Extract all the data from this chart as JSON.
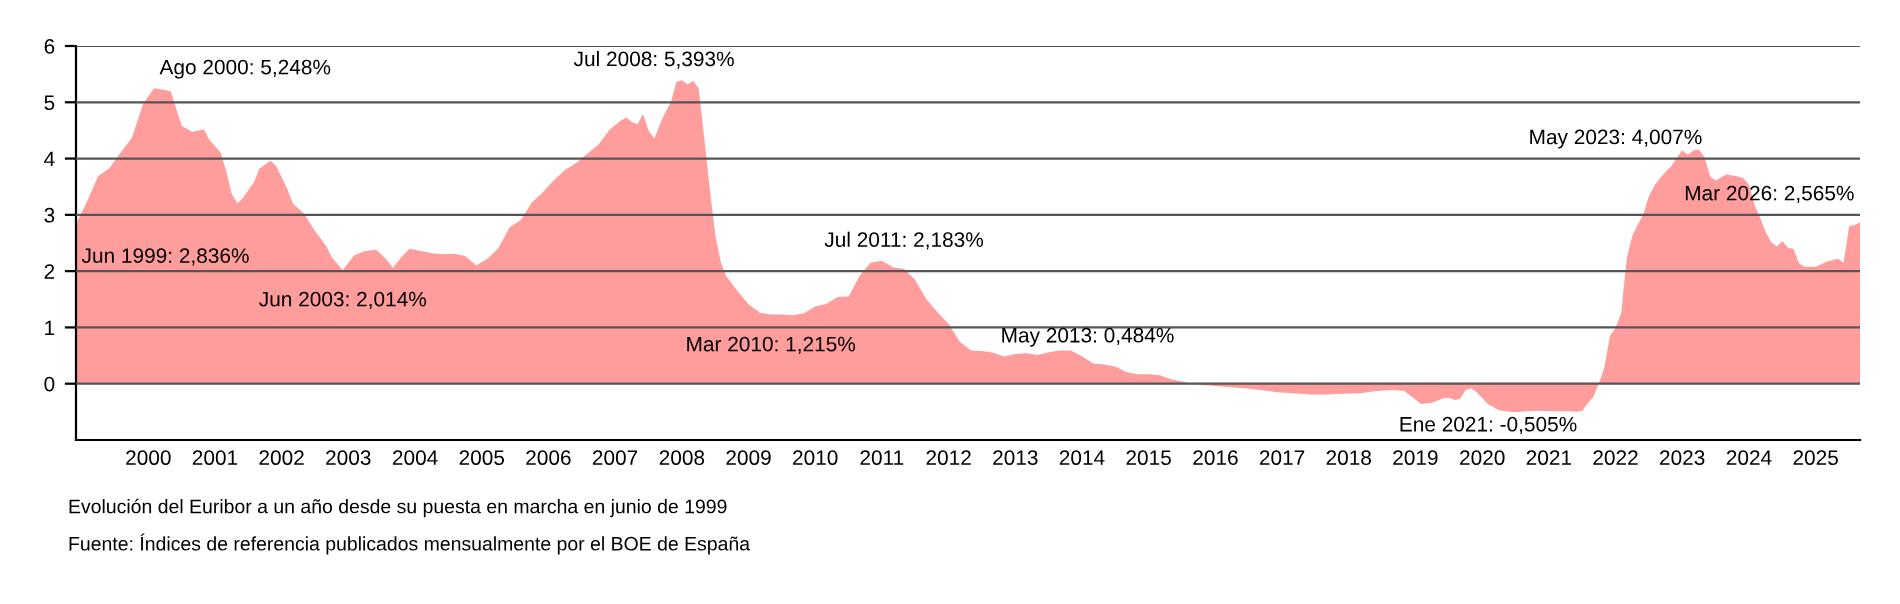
{
  "chart_data": {
    "type": "area",
    "x": [
      "1999-06",
      "1999-08",
      "1999-10",
      "1999-12",
      "2000-02",
      "2000-04",
      "2000-06",
      "2000-08",
      "2000-10",
      "2000-11",
      "2000-12",
      "2001-01",
      "2001-03",
      "2001-05",
      "2001-06",
      "2001-08",
      "2001-09",
      "2001-10",
      "2001-11",
      "2001-12",
      "2002-02",
      "2002-03",
      "2002-05",
      "2002-06",
      "2002-07",
      "2002-08",
      "2002-09",
      "2002-11",
      "2003-01",
      "2003-03",
      "2003-04",
      "2003-06",
      "2003-08",
      "2003-10",
      "2003-12",
      "2004-02",
      "2004-03",
      "2004-05",
      "2004-06",
      "2004-08",
      "2004-10",
      "2004-12",
      "2005-02",
      "2005-04",
      "2005-06",
      "2005-08",
      "2005-10",
      "2005-12",
      "2006-02",
      "2006-04",
      "2006-06",
      "2006-08",
      "2006-10",
      "2006-12",
      "2007-02",
      "2007-04",
      "2007-06",
      "2007-08",
      "2007-09",
      "2007-10",
      "2007-11",
      "2007-12",
      "2008-01",
      "2008-02",
      "2008-03",
      "2008-04",
      "2008-05",
      "2008-06",
      "2008-07",
      "2008-08",
      "2008-09",
      "2008-10",
      "2008-11",
      "2008-12",
      "2009-01",
      "2009-02",
      "2009-03",
      "2009-05",
      "2009-07",
      "2009-09",
      "2009-11",
      "2010-01",
      "2010-03",
      "2010-05",
      "2010-07",
      "2010-09",
      "2010-11",
      "2011-01",
      "2011-03",
      "2011-05",
      "2011-07",
      "2011-09",
      "2011-11",
      "2012-01",
      "2012-03",
      "2012-05",
      "2012-07",
      "2012-09",
      "2012-11",
      "2013-01",
      "2013-03",
      "2013-05",
      "2013-07",
      "2013-09",
      "2013-11",
      "2014-01",
      "2014-03",
      "2014-05",
      "2014-07",
      "2014-09",
      "2014-11",
      "2015-01",
      "2015-03",
      "2015-05",
      "2015-07",
      "2015-09",
      "2015-11",
      "2016-01",
      "2016-03",
      "2016-06",
      "2016-09",
      "2016-12",
      "2017-03",
      "2017-06",
      "2017-09",
      "2017-12",
      "2018-03",
      "2018-06",
      "2018-09",
      "2018-12",
      "2019-03",
      "2019-05",
      "2019-07",
      "2019-08",
      "2019-10",
      "2019-12",
      "2020-01",
      "2020-02",
      "2020-03",
      "2020-04",
      "2020-05",
      "2020-06",
      "2020-08",
      "2020-10",
      "2020-12",
      "2021-01",
      "2021-03",
      "2021-05",
      "2021-07",
      "2021-09",
      "2021-11",
      "2021-12",
      "2022-01",
      "2022-02",
      "2022-03",
      "2022-04",
      "2022-05",
      "2022-06",
      "2022-07",
      "2022-08",
      "2022-09",
      "2022-10",
      "2022-11",
      "2022-12",
      "2023-01",
      "2023-02",
      "2023-03",
      "2023-04",
      "2023-05",
      "2023-06",
      "2023-07",
      "2023-08",
      "2023-09",
      "2023-10",
      "2023-11",
      "2023-12",
      "2024-01",
      "2024-02",
      "2024-03",
      "2024-04",
      "2024-05",
      "2024-06",
      "2024-07",
      "2024-08",
      "2024-09",
      "2024-10",
      "2024-11",
      "2024-12",
      "2025-01",
      "2025-02",
      "2025-03",
      "2025-04",
      "2025-05",
      "2025-07",
      "2025-09",
      "2025-11",
      "2025-12",
      "2026-01",
      "2026-02",
      "2026-03"
    ],
    "series": [
      {
        "color": "#ff9c9c",
        "values": [
          2.836,
          3.24,
          3.69,
          3.83,
          4.11,
          4.36,
          4.96,
          5.248,
          5.22,
          5.19,
          4.88,
          4.58,
          4.47,
          4.52,
          4.33,
          4.11,
          3.77,
          3.37,
          3.2,
          3.3,
          3.59,
          3.82,
          3.96,
          3.87,
          3.67,
          3.46,
          3.2,
          3.02,
          2.71,
          2.45,
          2.25,
          2.014,
          2.28,
          2.36,
          2.38,
          2.19,
          2.06,
          2.3,
          2.4,
          2.36,
          2.32,
          2.3,
          2.31,
          2.27,
          2.1,
          2.22,
          2.41,
          2.78,
          2.91,
          3.22,
          3.4,
          3.62,
          3.8,
          3.92,
          4.09,
          4.25,
          4.51,
          4.67,
          4.73,
          4.65,
          4.61,
          4.79,
          4.5,
          4.35,
          4.59,
          4.82,
          4.99,
          5.36,
          5.393,
          5.32,
          5.38,
          5.25,
          4.35,
          3.45,
          2.62,
          2.14,
          1.91,
          1.65,
          1.41,
          1.26,
          1.23,
          1.23,
          1.215,
          1.25,
          1.37,
          1.42,
          1.54,
          1.55,
          1.92,
          2.15,
          2.183,
          2.07,
          2.04,
          1.84,
          1.5,
          1.27,
          1.06,
          0.74,
          0.59,
          0.58,
          0.55,
          0.484,
          0.53,
          0.54,
          0.51,
          0.56,
          0.59,
          0.59,
          0.49,
          0.36,
          0.34,
          0.3,
          0.21,
          0.17,
          0.17,
          0.15,
          0.08,
          0.04,
          -0.01,
          -0.03,
          -0.06,
          -0.08,
          -0.11,
          -0.15,
          -0.17,
          -0.19,
          -0.19,
          -0.18,
          -0.17,
          -0.13,
          -0.11,
          -0.13,
          -0.28,
          -0.36,
          -0.34,
          -0.26,
          -0.25,
          -0.29,
          -0.27,
          -0.11,
          -0.08,
          -0.15,
          -0.36,
          -0.47,
          -0.5,
          -0.505,
          -0.49,
          -0.48,
          -0.49,
          -0.49,
          -0.49,
          -0.5,
          -0.48,
          -0.34,
          -0.24,
          0.01,
          0.29,
          0.85,
          0.99,
          1.25,
          2.23,
          2.63,
          2.83,
          3.02,
          3.34,
          3.53,
          3.65,
          3.76,
          3.86,
          4.007,
          4.15,
          4.07,
          4.15,
          4.16,
          4.02,
          3.68,
          3.61,
          3.67,
          3.72,
          3.7,
          3.68,
          3.65,
          3.53,
          3.17,
          2.94,
          2.69,
          2.51,
          2.44,
          2.53,
          2.41,
          2.4,
          2.14,
          2.08,
          2.08,
          2.17,
          2.22,
          2.15,
          2.8,
          2.82,
          2.87
        ]
      }
    ],
    "xlim": [
      "1999-06",
      "2026-03"
    ],
    "xticks": [
      {
        "value": "2000-07",
        "label": "2000"
      },
      {
        "value": "2001-07",
        "label": "2001"
      },
      {
        "value": "2002-07",
        "label": "2002"
      },
      {
        "value": "2003-07",
        "label": "2003"
      },
      {
        "value": "2004-07",
        "label": "2004"
      },
      {
        "value": "2005-07",
        "label": "2005"
      },
      {
        "value": "2006-07",
        "label": "2006"
      },
      {
        "value": "2007-07",
        "label": "2007"
      },
      {
        "value": "2008-07",
        "label": "2008"
      },
      {
        "value": "2009-07",
        "label": "2009"
      },
      {
        "value": "2010-07",
        "label": "2010"
      },
      {
        "value": "2011-07",
        "label": "2011"
      },
      {
        "value": "2012-07",
        "label": "2012"
      },
      {
        "value": "2013-07",
        "label": "2013"
      },
      {
        "value": "2014-07",
        "label": "2014"
      },
      {
        "value": "2015-07",
        "label": "2015"
      },
      {
        "value": "2016-07",
        "label": "2016"
      },
      {
        "value": "2017-07",
        "label": "2017"
      },
      {
        "value": "2018-07",
        "label": "2018"
      },
      {
        "value": "2019-07",
        "label": "2019"
      },
      {
        "value": "2020-07",
        "label": "2020"
      },
      {
        "value": "2021-07",
        "label": "2021"
      },
      {
        "value": "2022-07",
        "label": "2022"
      },
      {
        "value": "2023-07",
        "label": "2023"
      },
      {
        "value": "2024-07",
        "label": "2024"
      },
      {
        "value": "2025-07",
        "label": "2025"
      }
    ],
    "ylim": [
      -1,
      6
    ],
    "yticks": [
      0,
      1,
      2,
      3,
      4,
      5,
      6
    ],
    "grid": "y",
    "legend": false,
    "annotations": [
      {
        "text": "Jun 1999: 2,836%",
        "x": "1999-06",
        "y": 2.836
      },
      {
        "text": "Ago 2000: 5,248%",
        "x": "2000-08",
        "y": 5.248
      },
      {
        "text": "Jun 2003: 2,014%",
        "x": "2003-06",
        "y": 2.014
      },
      {
        "text": "Jul 2008: 5,393%",
        "x": "2008-07",
        "y": 5.393
      },
      {
        "text": "Mar 2010: 1,215%",
        "x": "2010-03",
        "y": 1.215
      },
      {
        "text": "Jul 2011: 2,183%",
        "x": "2011-07",
        "y": 2.183
      },
      {
        "text": "May 2013: 0,484%",
        "x": "2013-05",
        "y": 0.484
      },
      {
        "text": "Ene 2021: -0,505%",
        "x": "2021-01",
        "y": -0.505
      },
      {
        "text": "May 2023: 4,007%",
        "x": "2023-05",
        "y": 4.007
      },
      {
        "text": "Mar 2026: 2,565%",
        "x": "2026-03",
        "y": 2.565
      },
      "Evolución del Euribor a un año desde su puesta en marcha en junio de 1999",
      "Fuente: Índices de referencia publicados mensualmente por el BOE de España"
    ]
  }
}
